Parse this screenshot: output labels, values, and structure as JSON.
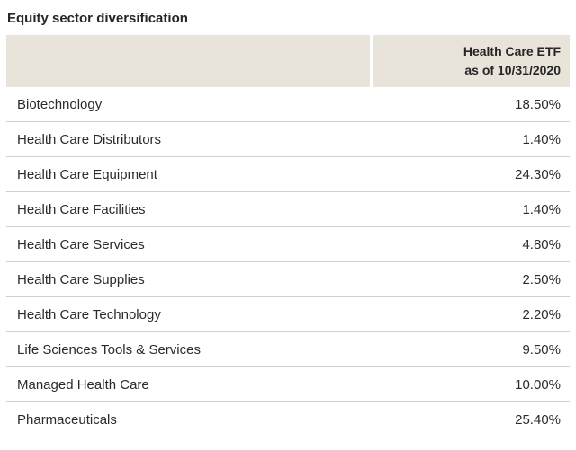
{
  "page": {
    "title": "Equity sector diversification"
  },
  "table": {
    "header": {
      "line1": "Health Care ETF",
      "line2": "as of 10/31/2020"
    },
    "rows": [
      {
        "sector": "Biotechnology",
        "value": "18.50%"
      },
      {
        "sector": "Health Care Distributors",
        "value": "1.40%"
      },
      {
        "sector": "Health Care Equipment",
        "value": "24.30%"
      },
      {
        "sector": "Health Care Facilities",
        "value": "1.40%"
      },
      {
        "sector": "Health Care Services",
        "value": "4.80%"
      },
      {
        "sector": "Health Care Supplies",
        "value": "2.50%"
      },
      {
        "sector": "Health Care Technology",
        "value": "2.20%"
      },
      {
        "sector": "Life Sciences Tools & Services",
        "value": "9.50%"
      },
      {
        "sector": "Managed Health Care",
        "value": "10.00%"
      },
      {
        "sector": "Pharmaceuticals",
        "value": "25.40%"
      }
    ]
  },
  "colors": {
    "header_bg": "#e8e4d9",
    "row_border": "#d0d0d0",
    "text": "#262626"
  }
}
